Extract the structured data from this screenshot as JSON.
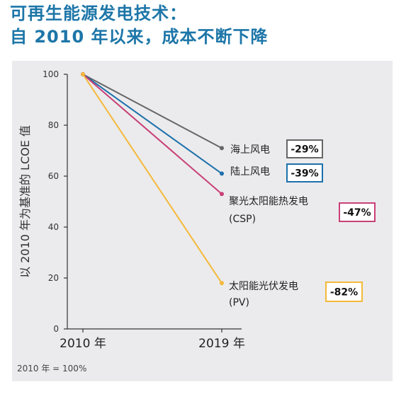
{
  "title_lines": [
    "可再生能源发电技术：",
    "自  2010  年以来，成本不断下降"
  ],
  "chart_data": {
    "type": "line",
    "x": [
      "2010 年",
      "2019 年"
    ],
    "ylabel": "以 2010 年为基准的 LCOE 值",
    "ylim": [
      0,
      100
    ],
    "yticks": [
      0,
      20,
      40,
      60,
      80,
      100
    ],
    "note": "2010 年 = 100%",
    "grid": false,
    "series": [
      {
        "name_lines": [
          "海上风电"
        ],
        "values": [
          100,
          71
        ],
        "change": "-29%",
        "color": "#666666"
      },
      {
        "name_lines": [
          "陆上风电"
        ],
        "values": [
          100,
          61
        ],
        "change": "-39%",
        "color": "#1d70ab"
      },
      {
        "name_lines": [
          "聚光太阳能热发电",
          "(CSP)"
        ],
        "values": [
          100,
          53
        ],
        "change": "-47%",
        "color": "#c84077"
      },
      {
        "name_lines": [
          "太阳能光伏发电",
          "(PV)"
        ],
        "values": [
          100,
          18
        ],
        "change": "-82%",
        "color": "#f4b93a"
      }
    ]
  }
}
